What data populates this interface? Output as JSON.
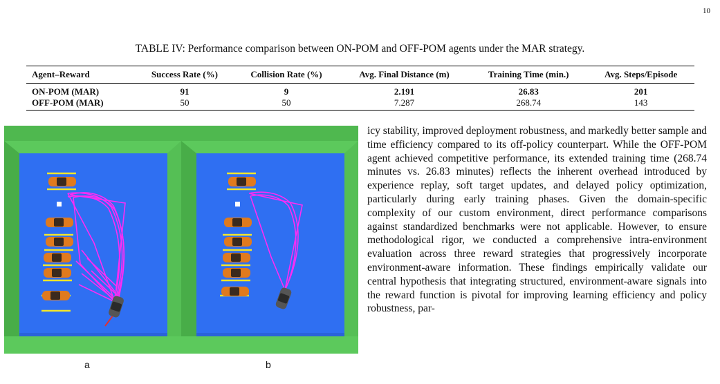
{
  "page": {
    "number": "10"
  },
  "table": {
    "caption": "TABLE IV: Performance comparison between ON-POM and OFF-POM agents under the MAR strategy.",
    "headers": [
      "Agent–Reward",
      "Success Rate (%)",
      "Collision Rate (%)",
      "Avg. Final Distance (m)",
      "Training Time (min.)",
      "Avg. Steps/Episode"
    ],
    "rows": [
      {
        "agent": "ON-POM (MAR)",
        "success": "91",
        "collision": "9",
        "distance": "2.191",
        "time": "26.83",
        "steps": "201"
      },
      {
        "agent": "OFF-POM (MAR)",
        "success": "50",
        "collision": "50",
        "distance": "7.287",
        "time": "268.74",
        "steps": "143"
      }
    ]
  },
  "figure": {
    "label_a": "a",
    "label_b": "b",
    "colors": {
      "grass": "#5cc95c",
      "lot": "#2f6ff2",
      "trajectory": "#ff2cf5",
      "parking_line": "#f3e62a",
      "car": "#e07a1e"
    }
  },
  "body": {
    "paragraph": "icy stability, improved deployment robustness, and markedly better sample and time efficiency compared to its off-policy counterpart. While the OFF-POM agent achieved competitive performance, its extended training time (268.74 minutes vs. 26.83 minutes) reflects the inherent overhead introduced by experience replay, soft target updates, and delayed policy op­timization, particularly during early training phases. Given the domain-specific complexity of our custom environment, direct performance comparisons against standardized benchmarks were not applicable. However, to ensure methodological rigor, we conducted a comprehensive intra-environment evaluation across three reward strategies that progressively incorporate environment-aware information. These findings empirically validate our central hypothesis that integrating structured, environment-aware signals into the reward function is pivotal for improving learning efficiency and policy robustness, par-"
  }
}
